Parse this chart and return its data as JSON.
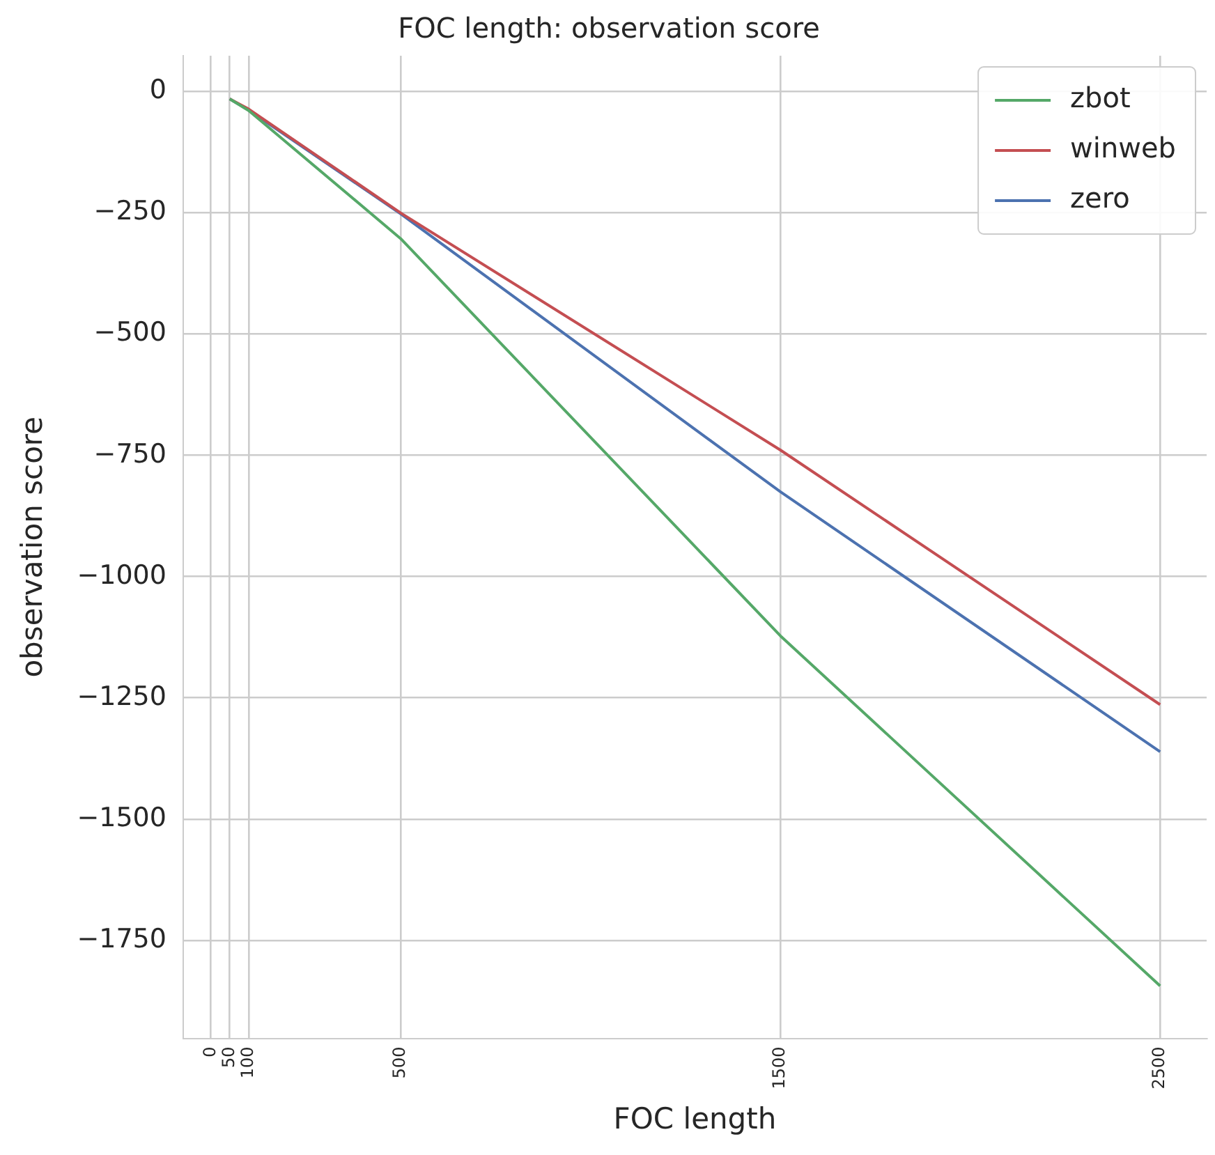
{
  "chart_data": {
    "type": "line",
    "title": "FOC length: observation score",
    "xlabel": "FOC length",
    "ylabel": "observation score",
    "x": [
      50,
      100,
      500,
      1500,
      2500
    ],
    "series": [
      {
        "name": "zbot",
        "color": "#55a868",
        "values": [
          -15,
          -39,
          -303,
          -1122,
          -1844
        ]
      },
      {
        "name": "winweb",
        "color": "#c44e52",
        "values": [
          -15,
          -36,
          -250,
          -739,
          -1264
        ]
      },
      {
        "name": "zero",
        "color": "#4c72b0",
        "values": [
          -15,
          -38,
          -252,
          -825,
          -1361
        ]
      }
    ],
    "xlim": [
      -72.5,
      2622.5
    ],
    "xticks": [
      0,
      50,
      100,
      500,
      1500,
      2500
    ],
    "ylim": [
      -1952,
      74
    ],
    "yticks": [
      -1750,
      -1500,
      -1250,
      -1000,
      -750,
      -500,
      -250,
      0
    ],
    "grid": true,
    "legend": "top right",
    "marker": "none",
    "line_style": "solid"
  }
}
